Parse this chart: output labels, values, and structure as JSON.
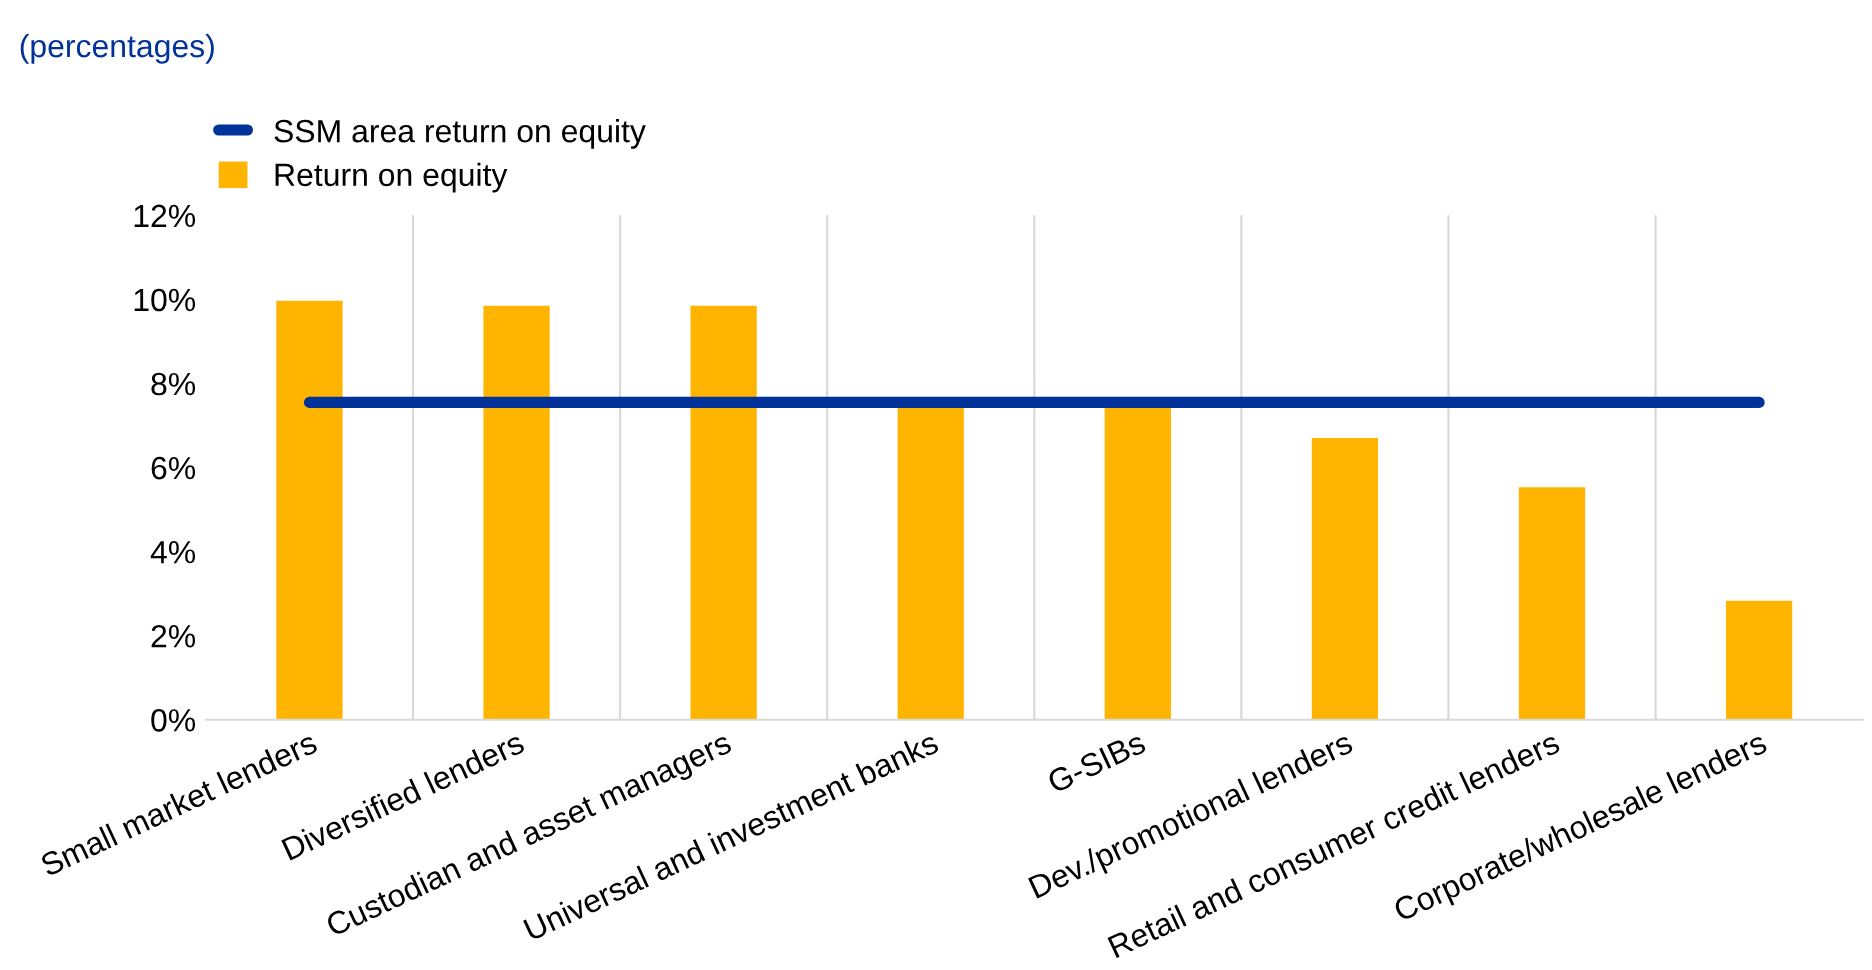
{
  "chart_data": {
    "type": "bar",
    "title": "(percentages)",
    "categories": [
      "Small market lenders",
      "Diversified lenders",
      "Custodian and asset managers",
      "Universal and investment banks",
      "G-SIBs",
      "Dev./promotional lenders",
      "Retail and consumer credit lenders",
      "Corporate/wholesale lenders"
    ],
    "series": [
      {
        "name": "SSM area return on equity",
        "type": "line",
        "color": "#003299",
        "values": [
          7.55,
          7.55,
          7.55,
          7.55,
          7.55,
          7.55,
          7.55,
          7.55
        ]
      },
      {
        "name": "Return on equity",
        "color": "#ffb400",
        "values": [
          9.97,
          9.85,
          9.85,
          7.5,
          7.42,
          6.7,
          5.53,
          2.83
        ]
      }
    ],
    "ylim": [
      0,
      12
    ],
    "yticks": [
      {
        "value": 0,
        "label": "0%"
      },
      {
        "value": 2,
        "label": "2%"
      },
      {
        "value": 4,
        "label": "4%"
      },
      {
        "value": 6,
        "label": "6%"
      },
      {
        "value": 8,
        "label": "8%"
      },
      {
        "value": 10,
        "label": "10%"
      },
      {
        "value": 12,
        "label": "12%"
      }
    ],
    "grid": "x",
    "legend": "top left",
    "marker": "none",
    "line_style": "solid"
  }
}
